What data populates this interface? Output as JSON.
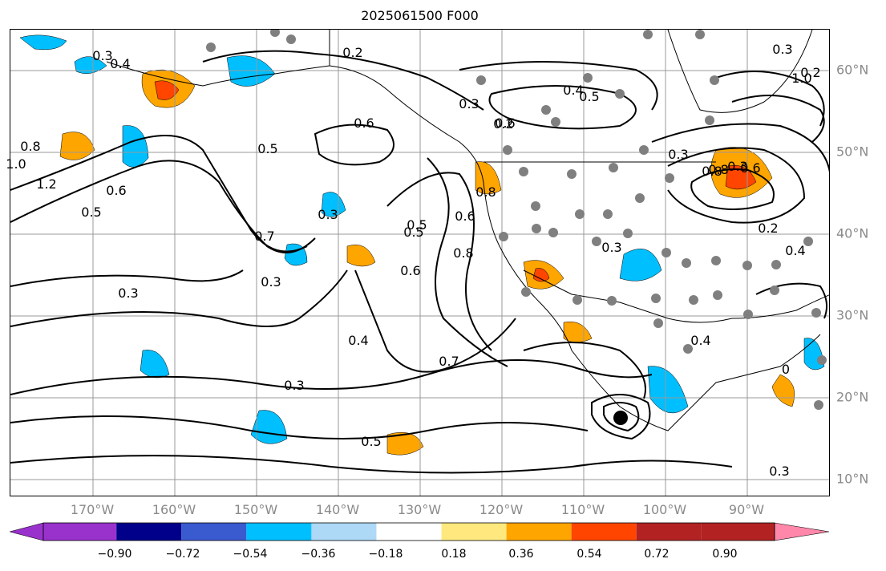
{
  "title": "2025061500 F000",
  "map": {
    "lon_labels": [
      "170°W",
      "160°W",
      "150°W",
      "140°W",
      "130°W",
      "120°W",
      "110°W",
      "100°W",
      "90°W"
    ],
    "lat_labels": [
      "60°N",
      "50°N",
      "40°N",
      "30°N",
      "20°N",
      "10°N"
    ],
    "contour_labels": [
      "0.2",
      "0.4",
      "0.5",
      "0.6",
      "0.3",
      "0.2",
      "0.6",
      "0.5",
      "0.4",
      "0.3",
      "0.8",
      "1.0",
      "1.2",
      "0.6",
      "0.5",
      "0.3",
      "0.5",
      "0.7",
      "0.3",
      "0.3",
      "0.5",
      "0.6",
      "0.8",
      "0.6",
      "0.8",
      "0.7",
      "0.4",
      "0.3",
      "0.5",
      "0.3",
      "0.3",
      "0.2",
      "0.8",
      "0.6",
      "0.4",
      "0.3",
      "1.0",
      "0.8",
      "0.3",
      "0.4",
      "0.2",
      "0",
      "0.3"
    ],
    "colors": {
      "contour": "#000000",
      "station": "#7f7f7f",
      "grid": "#999999",
      "coast": "#000000"
    }
  },
  "colorbar": {
    "tick_labels": [
      "−0.90",
      "−0.72",
      "−0.54",
      "−0.36",
      "−0.18",
      "0.18",
      "0.36",
      "0.54",
      "0.72",
      "0.90"
    ],
    "colors": [
      "#9932cc",
      "#00008b",
      "#3a5bcf",
      "#00bfff",
      "#add8f6",
      "#ffffff",
      "#ffe97f",
      "#ffa500",
      "#ff4500",
      "#b22222",
      "#ff88aa"
    ]
  }
}
